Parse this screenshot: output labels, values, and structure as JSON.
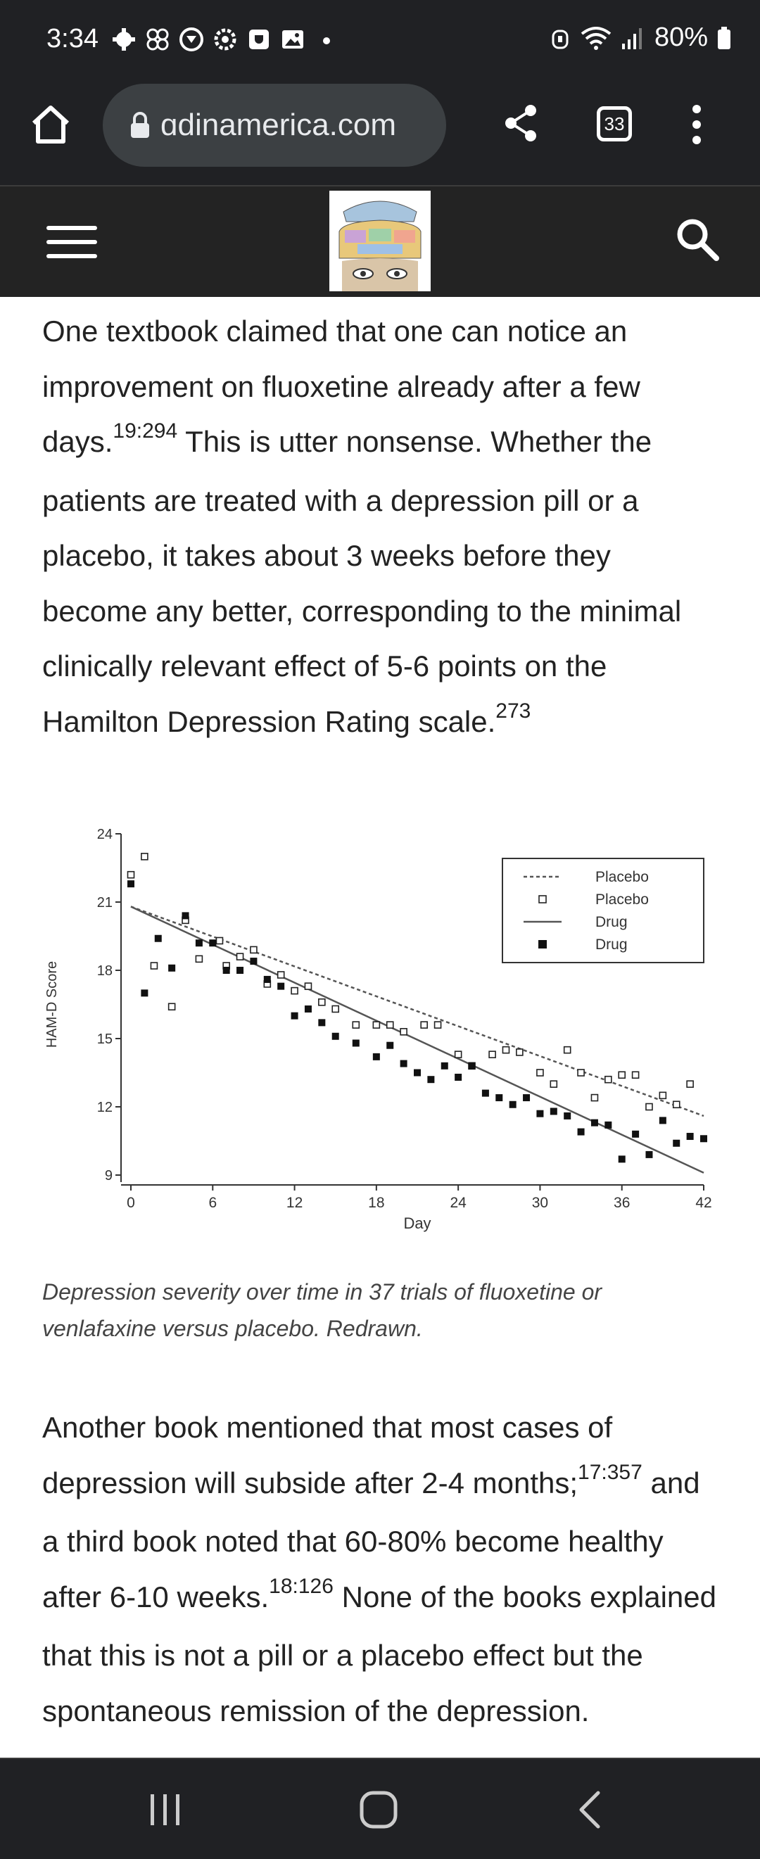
{
  "status_bar": {
    "time": "3:34",
    "battery": "80%",
    "icons": [
      "gear-icon",
      "pinwheel-icon",
      "play-circle-icon",
      "settings-icon",
      "app-icon",
      "gallery-icon",
      "dot-icon"
    ],
    "right_icons": [
      "alarm-icon",
      "wifi-icon",
      "signal-icon",
      "battery-icon"
    ]
  },
  "browser": {
    "url": "adinamerica.com",
    "url_shown": "ɑdinamerica.com",
    "tab_count": "33"
  },
  "article": {
    "para1_a": "One textbook claimed that one can notice an improvement on fluoxetine already after a few days.",
    "para1_sup1": "19:294",
    "para1_b": " This is utter nonsense. Whether the patients are treated with a depression pill or a placebo, it takes about 3 weeks before they become any better, corresponding to the minimal clinically relevant effect of 5-6 points on the Hamilton Depression Rating scale.",
    "para1_sup2": "273",
    "caption": "Depression severity over time in 37 trials of fluoxetine or venlafaxine versus placebo. Redrawn.",
    "para2_a": "Another book mentioned that most cases of depression will subside after 2-4 months;",
    "para2_sup1": "17:357",
    "para2_b": " and a third book noted that 60-80% become healthy after 6-10 weeks.",
    "para2_sup2": "18:126",
    "para2_c": " None of the books explained that this is not a pill or a placebo effect but the spontaneous remission of the depression."
  },
  "chart_data": {
    "type": "scatter",
    "title": "",
    "xlabel": "Day",
    "ylabel": "HAM-D Score",
    "xlim": [
      0,
      42
    ],
    "ylim": [
      9,
      24
    ],
    "xticks": [
      0,
      6,
      12,
      18,
      24,
      30,
      36,
      42
    ],
    "yticks": [
      9,
      12,
      15,
      18,
      21,
      24
    ],
    "legend": [
      {
        "label": "Placebo",
        "style": "dashed-line"
      },
      {
        "label": "Placebo",
        "style": "open-square"
      },
      {
        "label": "Drug",
        "style": "solid-line"
      },
      {
        "label": "Drug",
        "style": "filled-square"
      }
    ],
    "legend_position": "top-right",
    "series": [
      {
        "name": "Placebo",
        "marker": "open-square",
        "x": [
          0,
          1,
          1.7,
          3,
          4,
          5,
          6.5,
          7,
          8,
          9,
          10,
          11,
          12,
          13,
          14,
          15,
          16.5,
          18,
          19,
          20,
          21.5,
          22.5,
          24,
          25,
          26.5,
          27.5,
          28.5,
          30,
          31,
          32,
          33,
          34,
          35,
          36,
          37,
          38,
          39,
          40,
          41
        ],
        "y": [
          22.2,
          23,
          18.2,
          16.4,
          20.2,
          18.5,
          19.3,
          18.2,
          18.6,
          18.9,
          17.4,
          17.8,
          17.1,
          17.3,
          16.6,
          16.3,
          15.6,
          15.6,
          15.6,
          15.3,
          15.6,
          15.6,
          14.3,
          13.8,
          14.3,
          14.5,
          14.4,
          13.5,
          13,
          14.5,
          13.5,
          12.4,
          13.2,
          13.4,
          13.4,
          12.0,
          12.5,
          12.1,
          13.0
        ]
      },
      {
        "name": "Drug",
        "marker": "filled-square",
        "x": [
          0,
          1,
          2,
          3,
          4,
          5,
          6,
          7,
          8,
          9,
          10,
          11,
          12,
          13,
          14,
          15,
          16.5,
          18,
          19,
          20,
          21,
          22,
          23,
          24,
          25,
          26,
          27,
          28,
          29,
          30,
          31,
          32,
          33,
          34,
          35,
          36,
          37,
          38,
          39,
          40,
          41,
          42
        ],
        "y": [
          21.8,
          17.0,
          19.4,
          18.1,
          20.4,
          19.2,
          19.2,
          18.0,
          18.0,
          18.4,
          17.6,
          17.3,
          16.0,
          16.3,
          15.7,
          15.1,
          14.8,
          14.2,
          14.7,
          13.9,
          13.5,
          13.2,
          13.8,
          13.3,
          13.8,
          12.6,
          12.4,
          12.1,
          12.4,
          11.7,
          11.8,
          11.6,
          10.9,
          11.3,
          11.2,
          9.7,
          10.8,
          9.9,
          11.4,
          10.4,
          10.7,
          10.6
        ]
      },
      {
        "name": "Placebo fit",
        "style": "dashed-line",
        "x": [
          0,
          42
        ],
        "y": [
          20.8,
          11.6
        ]
      },
      {
        "name": "Drug fit",
        "style": "solid-line",
        "x": [
          0,
          42
        ],
        "y": [
          20.8,
          9.1
        ]
      }
    ]
  }
}
